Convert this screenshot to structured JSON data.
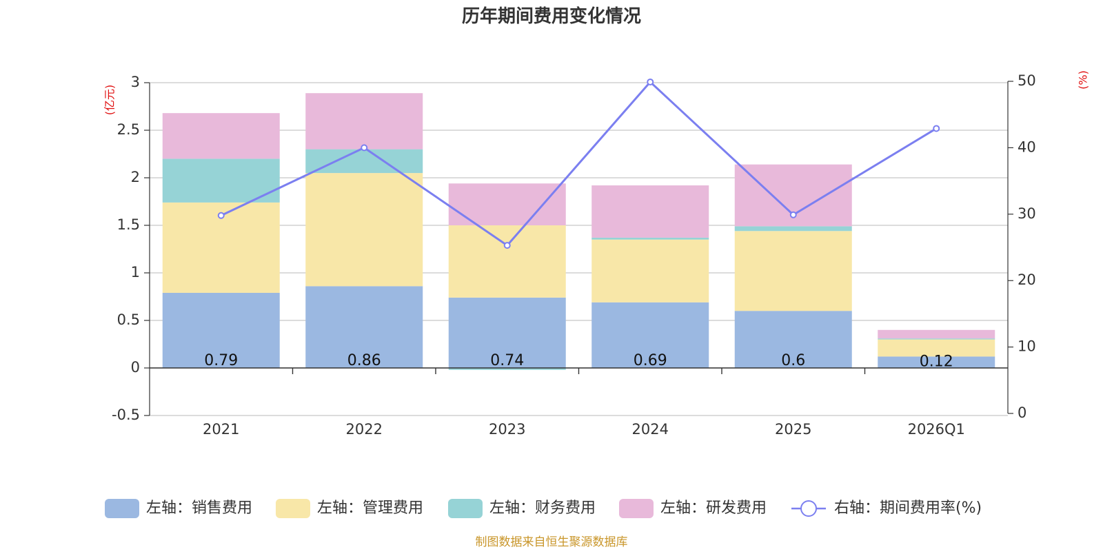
{
  "chart_data": {
    "type": "bar",
    "title": "历年期间费用变化情况",
    "categories": [
      "2021",
      "2022",
      "2023",
      "2024",
      "2025",
      "2026Q1"
    ],
    "series": [
      {
        "name": "左轴：销售费用",
        "kind": "bar",
        "axis": "left",
        "color": "#9bb8e1",
        "values": [
          0.79,
          0.86,
          0.74,
          0.69,
          0.6,
          0.12
        ]
      },
      {
        "name": "左轴：管理费用",
        "kind": "bar",
        "axis": "left",
        "color": "#f8e7a8",
        "values": [
          0.95,
          1.19,
          0.76,
          0.66,
          0.84,
          0.18
        ]
      },
      {
        "name": "左轴：财务费用",
        "kind": "bar",
        "axis": "left",
        "color": "#96d3d6",
        "values": [
          0.46,
          0.25,
          -0.02,
          0.02,
          0.05,
          0.01
        ]
      },
      {
        "name": "左轴：研发费用",
        "kind": "bar",
        "axis": "left",
        "color": "#e8b9da",
        "values": [
          0.48,
          0.59,
          0.44,
          0.55,
          0.65,
          0.09
        ]
      },
      {
        "name": "右轴：期间费用率(%)",
        "kind": "line",
        "axis": "right",
        "color": "#7b7ff0",
        "values": [
          29.8,
          40.0,
          25.3,
          49.9,
          29.9,
          42.9
        ]
      }
    ],
    "data_labels": [
      "0.79",
      "0.86",
      "0.74",
      "0.69",
      "0.6",
      "0.12"
    ],
    "left_axis": {
      "unit": "(亿元)",
      "ylim": [
        -0.5,
        3
      ],
      "ticks": [
        3,
        2.5,
        2,
        1.5,
        1,
        0.5,
        0,
        -0.5
      ],
      "tick_labels": [
        "3",
        "2.5",
        "2",
        "1.5",
        "1",
        "0.5",
        "0",
        "-0.5"
      ]
    },
    "right_axis": {
      "unit": "(%)",
      "ylim": [
        0,
        50
      ],
      "ticks": [
        50,
        40,
        30,
        20,
        10,
        0
      ],
      "tick_labels": [
        "50",
        "40",
        "30",
        "20",
        "10",
        "0"
      ]
    },
    "legend_position": "bottom",
    "grid": true
  },
  "source": "制图数据来自恒生聚源数据库"
}
